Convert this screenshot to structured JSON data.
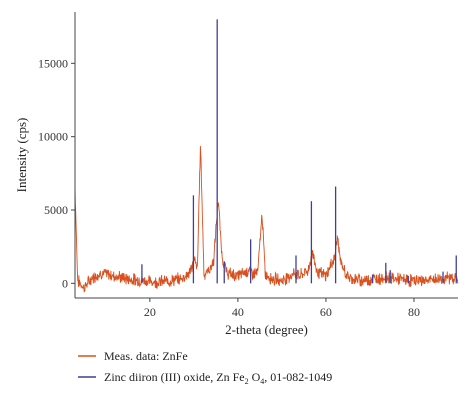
{
  "chart_data": {
    "type": "line",
    "xlabel": "2-theta (degree)",
    "ylabel": "Intensity (cps)",
    "xlim": [
      3,
      90
    ],
    "ylim": [
      -1000,
      18500
    ],
    "x_ticks": [
      20,
      40,
      60,
      80
    ],
    "y_ticks": [
      0,
      5000,
      10000,
      15000
    ],
    "x_tick_labels": [
      "20",
      "40",
      "60",
      "80"
    ],
    "y_tick_labels": [
      "0",
      "5000",
      "10000",
      "15000"
    ],
    "grid": false,
    "legend": {
      "placement": "bottom",
      "measured_label": "Meas. data: ZnFe",
      "reference_label_prefix": "Zinc diiron (III) oxide, Zn Fe",
      "reference_label_sub1": "2",
      "reference_label_mid": " O",
      "reference_label_sub2": "4",
      "reference_label_suffix": ", 01-082-1049"
    },
    "colors": {
      "measured": "#d9501e",
      "reference": "#3f3f9a",
      "axis": "#444444"
    },
    "measured": {
      "baseline": [
        [
          3,
          6600
        ],
        [
          3.6,
          200
        ],
        [
          5,
          -300
        ],
        [
          7,
          400
        ],
        [
          9,
          700
        ],
        [
          12,
          500
        ],
        [
          15,
          300
        ],
        [
          18,
          200
        ],
        [
          21,
          100
        ],
        [
          24,
          150
        ],
        [
          27,
          300
        ],
        [
          29,
          700
        ],
        [
          30.2,
          1600
        ],
        [
          30.8,
          900
        ],
        [
          31.5,
          9600
        ],
        [
          32.3,
          600
        ],
        [
          33.5,
          900
        ],
        [
          34.5,
          1500
        ],
        [
          35.5,
          5800
        ],
        [
          36.4,
          1800
        ],
        [
          37.5,
          700
        ],
        [
          40,
          500
        ],
        [
          42.5,
          900
        ],
        [
          43.2,
          700
        ],
        [
          44.5,
          700
        ],
        [
          45.5,
          4800
        ],
        [
          46.2,
          600
        ],
        [
          48,
          300
        ],
        [
          50,
          200
        ],
        [
          53,
          700
        ],
        [
          54,
          500
        ],
        [
          56,
          900
        ],
        [
          57,
          2100
        ],
        [
          58,
          800
        ],
        [
          60,
          500
        ],
        [
          62,
          1800
        ],
        [
          62.6,
          3200
        ],
        [
          63.4,
          1300
        ],
        [
          65,
          400
        ],
        [
          68,
          200
        ],
        [
          71,
          300
        ],
        [
          74,
          400
        ],
        [
          76,
          300
        ],
        [
          79,
          200
        ],
        [
          83,
          200
        ],
        [
          86,
          300
        ],
        [
          89,
          400
        ],
        [
          90,
          300
        ]
      ]
    },
    "reference": {
      "peaks": [
        [
          18.2,
          1300
        ],
        [
          29.9,
          6000
        ],
        [
          35.3,
          18000
        ],
        [
          36.9,
          1500
        ],
        [
          42.9,
          3000
        ],
        [
          53.2,
          1900
        ],
        [
          56.7,
          5600
        ],
        [
          62.2,
          6600
        ],
        [
          70.6,
          600
        ],
        [
          73.6,
          1400
        ],
        [
          74.6,
          900
        ],
        [
          78.7,
          500
        ],
        [
          86.6,
          800
        ],
        [
          89.6,
          1900
        ]
      ]
    }
  }
}
